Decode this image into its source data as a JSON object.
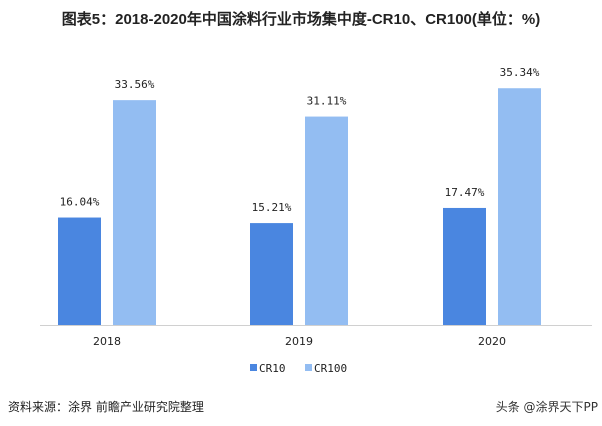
{
  "title": "图表5：2018-2020年中国涂料行业市场集中度-CR10、CR100(单位：%)",
  "source": "资料来源：涂界 前瞻产业研究院整理",
  "watermark": "头条 @涂界天下PP",
  "chart_data": {
    "type": "bar",
    "categories": [
      "2018",
      "2019",
      "2020"
    ],
    "series": [
      {
        "name": "CR10",
        "values": [
          16.04,
          15.21,
          17.47
        ],
        "labels": [
          "16.04%",
          "15.21%",
          "17.47%"
        ],
        "color": "#4a86e0"
      },
      {
        "name": "CR100",
        "values": [
          33.56,
          31.11,
          35.34
        ],
        "labels": [
          "33.56%",
          "31.11%",
          "35.34%"
        ],
        "color": "#93bdf2"
      }
    ],
    "legend": "bottom",
    "grid": false
  }
}
